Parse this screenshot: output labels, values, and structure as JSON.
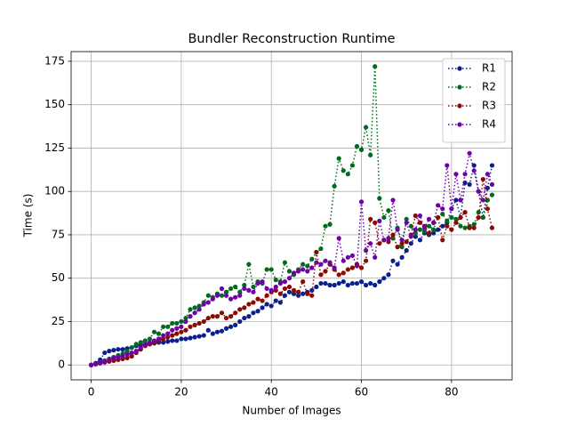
{
  "chart_data": {
    "type": "line",
    "title": "Bundler Reconstruction Runtime",
    "x_label": "Number of Images",
    "y_label": "Time (s)",
    "x": [
      0,
      1,
      2,
      3,
      4,
      5,
      6,
      7,
      8,
      9,
      10,
      11,
      12,
      13,
      14,
      15,
      16,
      17,
      18,
      19,
      20,
      21,
      22,
      23,
      24,
      25,
      26,
      27,
      28,
      29,
      30,
      31,
      32,
      33,
      34,
      35,
      36,
      37,
      38,
      39,
      40,
      41,
      42,
      43,
      44,
      45,
      46,
      47,
      48,
      49,
      50,
      51,
      52,
      53,
      54,
      55,
      56,
      57,
      58,
      59,
      60,
      61,
      62,
      63,
      64,
      65,
      66,
      67,
      68,
      69,
      70,
      71,
      72,
      73,
      74,
      75,
      76,
      77,
      78,
      79,
      80,
      81,
      82,
      83,
      84,
      85,
      86,
      87,
      88,
      89
    ],
    "series": [
      {
        "name": "R1",
        "color": "#0b1f8c",
        "values": [
          0,
          1,
          3,
          7,
          8,
          8.5,
          9,
          9,
          9.5,
          10,
          11,
          11.5,
          12,
          12,
          12.5,
          13,
          13,
          13.5,
          14,
          14,
          15,
          15,
          15.5,
          16,
          16.5,
          17,
          20,
          18,
          19,
          19.5,
          21,
          22,
          23,
          25,
          27,
          28,
          30,
          31,
          33,
          35,
          34,
          37,
          36,
          40,
          42,
          41,
          40,
          41,
          42,
          43,
          45,
          47,
          47,
          46,
          46,
          47,
          48,
          46,
          47,
          47,
          48,
          46,
          47,
          46,
          48,
          50,
          52,
          60,
          58,
          62,
          66,
          70,
          74,
          72,
          76,
          75,
          76,
          78,
          80,
          82,
          90,
          95,
          85,
          105,
          104,
          115,
          100,
          85,
          102,
          115
        ]
      },
      {
        "name": "R2",
        "color": "#006b1e",
        "values": [
          0,
          0.5,
          1.5,
          2.5,
          3.5,
          4.5,
          5.5,
          6.5,
          8,
          10,
          12,
          13,
          14,
          15,
          19,
          18,
          22,
          22,
          24,
          24,
          25,
          27,
          32,
          33,
          34,
          36,
          40,
          39,
          41,
          40,
          42,
          44,
          45,
          42,
          46,
          58,
          45,
          48,
          47,
          55,
          55,
          49,
          48,
          59,
          54,
          52,
          55,
          58,
          57,
          61,
          65,
          67,
          80,
          81,
          103,
          119,
          112,
          110,
          115,
          126,
          124,
          137,
          121,
          172,
          96,
          85,
          89,
          73,
          79,
          68,
          84,
          80,
          76,
          78,
          77,
          80,
          78,
          85,
          87,
          83,
          85,
          84,
          80,
          79,
          80,
          81,
          88,
          85,
          95,
          98
        ]
      },
      {
        "name": "R3",
        "color": "#8b0a00",
        "values": [
          0,
          0.5,
          1,
          1.5,
          2,
          2.5,
          3,
          3.5,
          4,
          5,
          7,
          9,
          11,
          12,
          13,
          14,
          15,
          16,
          17,
          18,
          19,
          20,
          22,
          23,
          24,
          25,
          27,
          28,
          28,
          30,
          27,
          28,
          30,
          32,
          33,
          35,
          36,
          38,
          37,
          40,
          42,
          43,
          41,
          44,
          45,
          43,
          42,
          48,
          41,
          40,
          65,
          52,
          54,
          58,
          55,
          52,
          53,
          55,
          56,
          58,
          56,
          60,
          84,
          82,
          70,
          72,
          71,
          75,
          68,
          70,
          71,
          75,
          86,
          82,
          80,
          76,
          82,
          85,
          72,
          80,
          78,
          82,
          85,
          88,
          79,
          79,
          85,
          107,
          90,
          79
        ]
      },
      {
        "name": "R4",
        "color": "#7000a8",
        "values": [
          0,
          0.5,
          1,
          2,
          3,
          4,
          4.5,
          5,
          6,
          7,
          8,
          10,
          12,
          13,
          14,
          15,
          17,
          18,
          20,
          21,
          22,
          25,
          28,
          30,
          32,
          35,
          36,
          38,
          40,
          44,
          40,
          38,
          39,
          40,
          44,
          43,
          42,
          47,
          48,
          44,
          43,
          45,
          47,
          48,
          50,
          53,
          54,
          55,
          54,
          56,
          59,
          58,
          60,
          59,
          56,
          73,
          60,
          62,
          63,
          57,
          94,
          66,
          70,
          62,
          83,
          72,
          73,
          95,
          78,
          72,
          82,
          74,
          78,
          86,
          79,
          84,
          82,
          92,
          90,
          115,
          90,
          110,
          95,
          110,
          122,
          112,
          100,
          95,
          110,
          104
        ]
      }
    ],
    "xlim": [
      -4.45,
      93.45
    ],
    "ylim": [
      -8.6,
      180.6
    ],
    "xticks": [
      0,
      20,
      40,
      60,
      80
    ],
    "yticks": [
      0,
      25,
      50,
      75,
      100,
      125,
      150,
      175
    ],
    "grid": true,
    "legend": "upper right"
  }
}
